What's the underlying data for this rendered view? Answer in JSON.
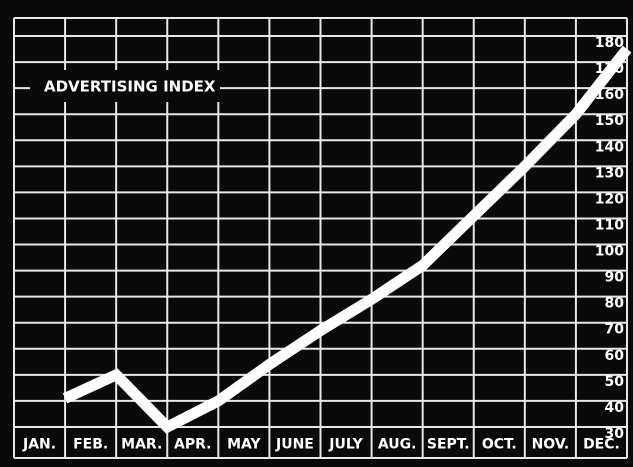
{
  "chart_data": {
    "type": "line",
    "title": "ADVERTISING INDEX",
    "categories": [
      "JAN.",
      "FEB.",
      "MAR.",
      "APR.",
      "MAY",
      "JUNE",
      "JULY",
      "AUG.",
      "SEPT.",
      "OCT.",
      "NOV.",
      "DEC."
    ],
    "series": [
      {
        "name": "Advertising Index",
        "color": "#ffffff",
        "values": [
          41,
          50,
          30,
          40,
          54,
          67,
          79,
          92,
          111,
          130,
          150,
          175
        ]
      }
    ],
    "ylim": [
      30,
      180
    ],
    "yticks": [
      30,
      40,
      50,
      60,
      70,
      80,
      90,
      100,
      110,
      120,
      130,
      140,
      150,
      160,
      170,
      180
    ],
    "grid": true
  }
}
